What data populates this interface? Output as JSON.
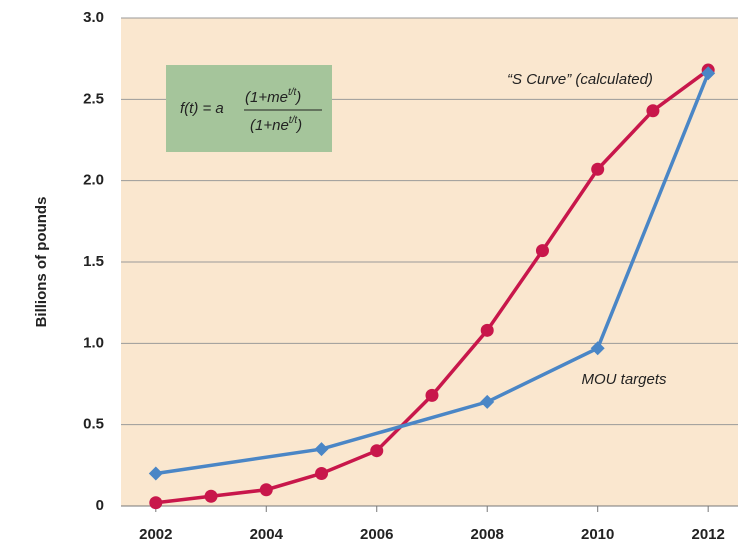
{
  "chart_data": {
    "type": "line",
    "y_label": "Billions of pounds",
    "x": [
      2002,
      2003,
      2004,
      2005,
      2006,
      2007,
      2008,
      2009,
      2010,
      2011,
      2012
    ],
    "series": [
      {
        "name": "“S Curve” (calculated)",
        "color": "#c8174b",
        "marker": "circle",
        "x": [
          2002,
          2003,
          2004,
          2005,
          2006,
          2007,
          2008,
          2009,
          2010,
          2011,
          2012
        ],
        "values": [
          0.02,
          0.06,
          0.1,
          0.2,
          0.34,
          0.68,
          1.08,
          1.57,
          2.07,
          2.43,
          2.68
        ]
      },
      {
        "name": "MOU targets",
        "color": "#4a86c6",
        "marker": "diamond",
        "x": [
          2002,
          2005,
          2008,
          2010,
          2012
        ],
        "values": [
          0.2,
          0.35,
          0.64,
          0.97,
          2.66
        ]
      }
    ],
    "xlim": [
      2001.37,
      2012.54
    ],
    "xticks": [
      2002,
      2004,
      2006,
      2008,
      2010,
      2012
    ],
    "ylim": [
      0,
      3
    ],
    "yticks": [
      0,
      0.5,
      {
        "value": 1,
        "label": "1.0"
      },
      1.5,
      {
        "value": 2,
        "label": "2.0"
      },
      2.5,
      {
        "value": 3,
        "label": "3.0"
      }
    ],
    "grid": true,
    "formula": {
      "lhs": "f(t) = a",
      "numerator": [
        "(1+me",
        "t/t",
        ")"
      ],
      "denominator": [
        "(1+ne",
        "t/t",
        ")"
      ]
    }
  }
}
